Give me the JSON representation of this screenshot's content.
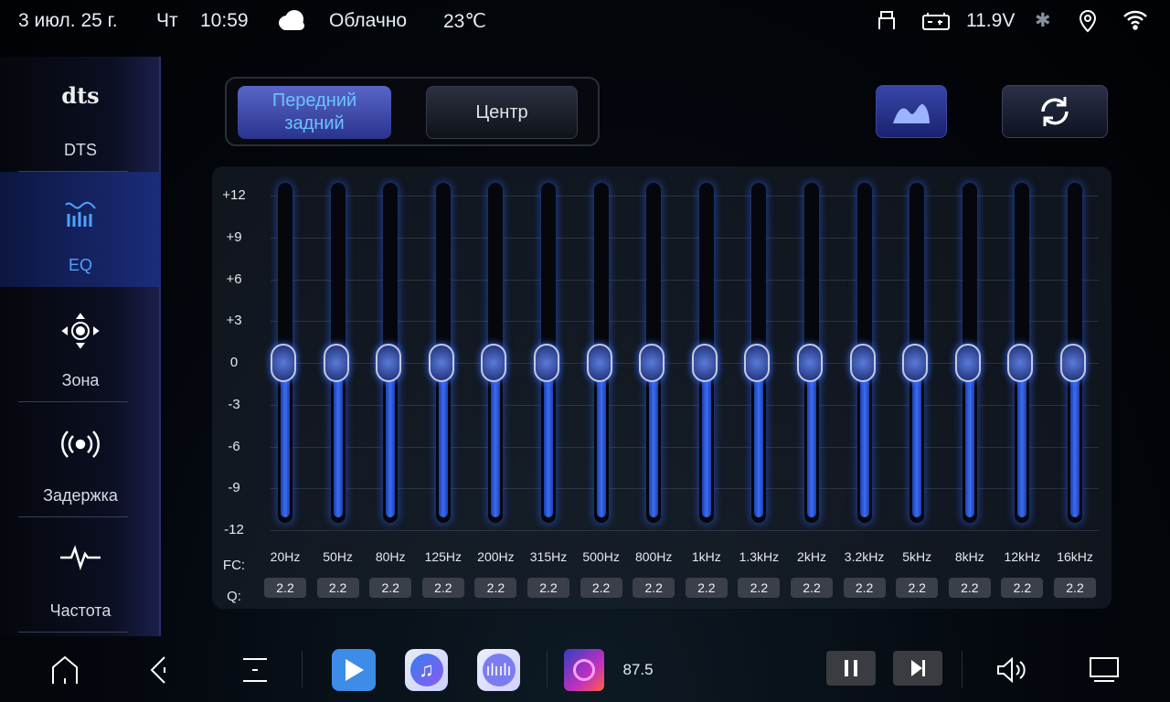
{
  "status": {
    "date": "3 июл. 25 г.",
    "weekday": "Чт",
    "time": "10:59",
    "weather_icon": "cloud-icon",
    "weather": "Облачно",
    "temperature": "23℃",
    "voltage": "11.9V"
  },
  "sidebar": {
    "items": [
      {
        "label": "DTS",
        "icon": "dts-logo-icon",
        "logo_text": "dts"
      },
      {
        "label": "EQ",
        "icon": "equalizer-icon",
        "active": true
      },
      {
        "label": "Зона",
        "icon": "zone-target-icon"
      },
      {
        "label": "Задержка",
        "icon": "broadcast-icon"
      },
      {
        "label": "Частота",
        "icon": "waveform-icon"
      }
    ]
  },
  "tabs": [
    {
      "label": "Передний задний",
      "active": true
    },
    {
      "label": "Центр",
      "active": false
    }
  ],
  "eq": {
    "y_ticks": [
      "+12",
      "+9",
      "+6",
      "+3",
      "0",
      "-3",
      "-6",
      "-9",
      "-12"
    ],
    "range": [
      -12,
      12
    ],
    "fc_label": "FC:",
    "q_label": "Q:",
    "bands": [
      {
        "fc": "20Hz",
        "q": "2.2",
        "gain": 0
      },
      {
        "fc": "50Hz",
        "q": "2.2",
        "gain": 0
      },
      {
        "fc": "80Hz",
        "q": "2.2",
        "gain": 0
      },
      {
        "fc": "125Hz",
        "q": "2.2",
        "gain": 0
      },
      {
        "fc": "200Hz",
        "q": "2.2",
        "gain": 0
      },
      {
        "fc": "315Hz",
        "q": "2.2",
        "gain": 0
      },
      {
        "fc": "500Hz",
        "q": "2.2",
        "gain": 0
      },
      {
        "fc": "800Hz",
        "q": "2.2",
        "gain": 0
      },
      {
        "fc": "1kHz",
        "q": "2.2",
        "gain": 0
      },
      {
        "fc": "1.3kHz",
        "q": "2.2",
        "gain": 0
      },
      {
        "fc": "2kHz",
        "q": "2.2",
        "gain": 0
      },
      {
        "fc": "3.2kHz",
        "q": "2.2",
        "gain": 0
      },
      {
        "fc": "5kHz",
        "q": "2.2",
        "gain": 0
      },
      {
        "fc": "8kHz",
        "q": "2.2",
        "gain": 0
      },
      {
        "fc": "12kHz",
        "q": "2.2",
        "gain": 0
      },
      {
        "fc": "16kHz",
        "q": "2.2",
        "gain": 0
      }
    ]
  },
  "dock": {
    "radio_frequency": "87.5"
  },
  "colors": {
    "accent": "#4fa2ff",
    "slider_fill": "#3c6cf0"
  }
}
